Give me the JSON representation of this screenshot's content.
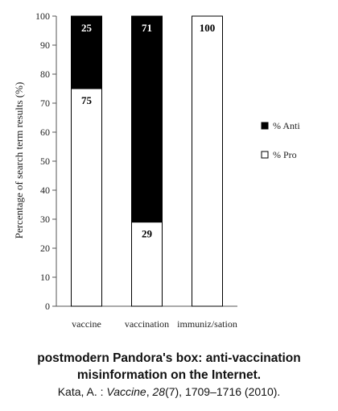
{
  "chart_data": {
    "type": "bar",
    "stacked": true,
    "categories": [
      "vaccine",
      "vaccination",
      "immuniz/sation"
    ],
    "series": [
      {
        "name": "% Pro",
        "values": [
          75,
          29,
          100
        ],
        "color": "#ffffff",
        "label_color": "#000000"
      },
      {
        "name": "% Anti",
        "values": [
          25,
          71,
          0
        ],
        "color": "#000000",
        "label_color": "#ffffff"
      }
    ],
    "data_labels": [
      {
        "category": "vaccine",
        "series": "% Anti",
        "text": "25"
      },
      {
        "category": "vaccine",
        "series": "% Pro",
        "text": "75"
      },
      {
        "category": "vaccination",
        "series": "% Anti",
        "text": "71"
      },
      {
        "category": "vaccination",
        "series": "% Pro",
        "text": "29"
      },
      {
        "category": "immuniz/sation",
        "series": "% Pro",
        "text": "100"
      }
    ],
    "ylabel": "Percentage of search term results (%)",
    "xlabel": "",
    "ylim": [
      0,
      100
    ],
    "yticks": [
      "0",
      "10",
      "20",
      "30",
      "40",
      "50",
      "60",
      "70",
      "80",
      "90",
      "100"
    ],
    "legend": {
      "placement": "right",
      "items": [
        {
          "label": "% Anti",
          "color": "#000000"
        },
        {
          "label": "% Pro",
          "color": "#ffffff"
        }
      ]
    },
    "grid": false
  },
  "caption": {
    "title": "postmodern Pandora's box: anti-vaccination\nmisinformation on the Internet.",
    "citation_author": "Kata, A. : ",
    "citation_journal": "Vaccine",
    "citation_volume": ", 28",
    "citation_rest": "(7), 1709–1716 (2010)."
  }
}
